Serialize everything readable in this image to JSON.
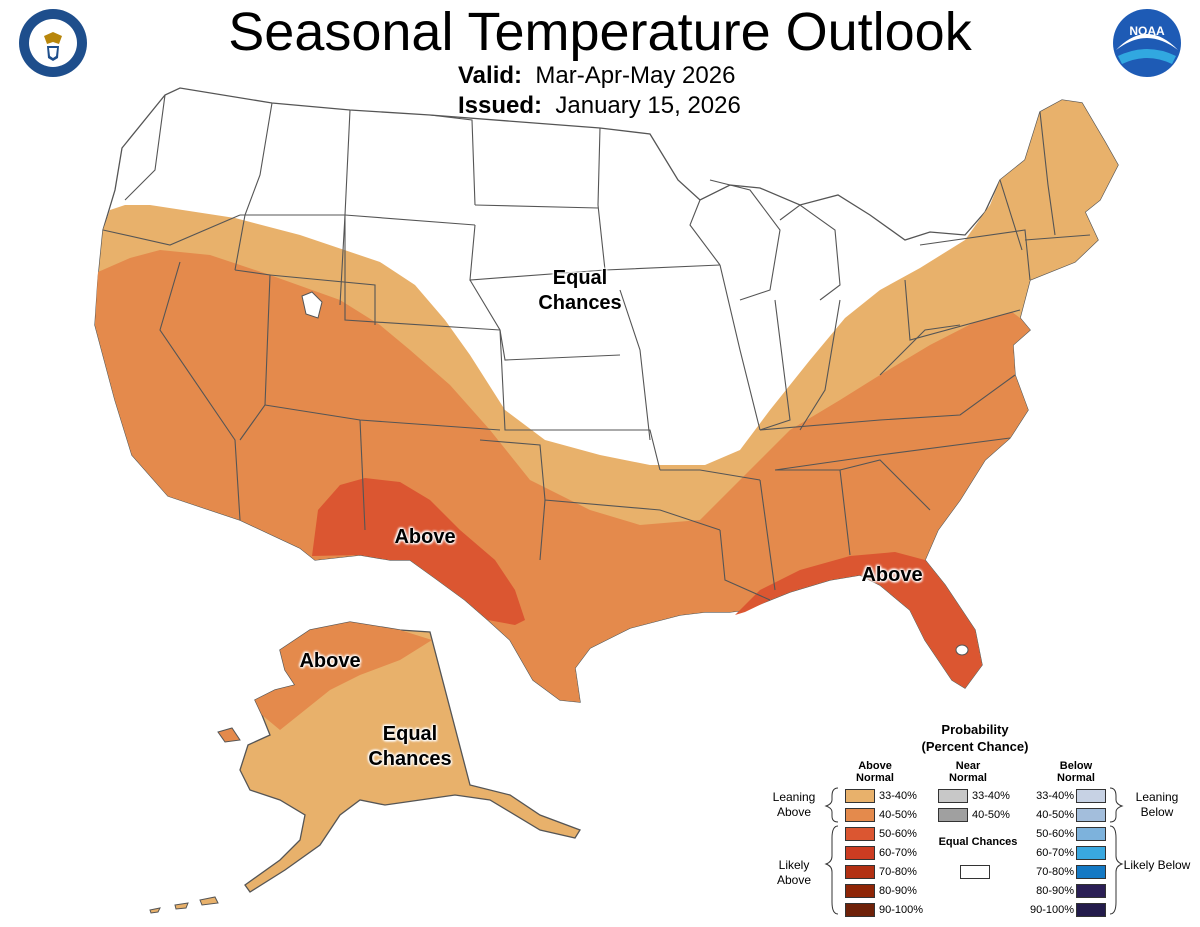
{
  "header": {
    "title": "Seasonal Temperature Outlook",
    "valid_label": "Valid:",
    "valid_value": "Mar-Apr-May 2026",
    "issued_label": "Issued:",
    "issued_value": "January 15, 2026"
  },
  "logos": {
    "left": {
      "icon": "department-of-commerce-seal",
      "text": "DEPARTMENT OF COMMERCE · UNITED STATES OF AMERICA"
    },
    "right": {
      "icon": "noaa-logo",
      "text": "NOAA"
    }
  },
  "map_labels": {
    "conus_equal": "Equal Chances",
    "southwest_above": "Above",
    "florida_above": "Above",
    "alaska_above": "Above",
    "alaska_equal": "Equal Chances"
  },
  "colors": {
    "above_33_40": "#E8B16B",
    "above_40_50": "#E48A4C",
    "above_50_60": "#DB5631",
    "above_60_70": "#CC3C22",
    "above_70_80": "#B23013",
    "above_80_90": "#8E2506",
    "above_90_100": "#6E2109",
    "near_33_40": "#C8C8C8",
    "near_40_50": "#A0A0A0",
    "below_33_40": "#C7D2E4",
    "below_40_50": "#A3BEDC",
    "below_50_60": "#7DB2DC",
    "below_60_70": "#39A8E0",
    "below_70_80": "#1479C4",
    "below_80_90": "#2B1F55",
    "below_90_100": "#231B4B",
    "equal_chances": "#FFFFFF",
    "border": "#555555"
  },
  "legend": {
    "title_line1": "Probability",
    "title_line2": "(Percent Chance)",
    "above_header": "Above Normal",
    "near_header": "Near Normal",
    "below_header": "Below Normal",
    "above_ranges": [
      "33-40%",
      "40-50%",
      "50-60%",
      "60-70%",
      "70-80%",
      "80-90%",
      "90-100%"
    ],
    "near_ranges": [
      "33-40%",
      "40-50%"
    ],
    "below_ranges": [
      "33-40%",
      "40-50%",
      "50-60%",
      "60-70%",
      "70-80%",
      "80-90%",
      "90-100%"
    ],
    "equal_chances": "Equal Chances",
    "leaning_above": "Leaning Above",
    "likely_above": "Likely Above",
    "leaning_below": "Leaning Below",
    "likely_below": "Likely Below"
  }
}
